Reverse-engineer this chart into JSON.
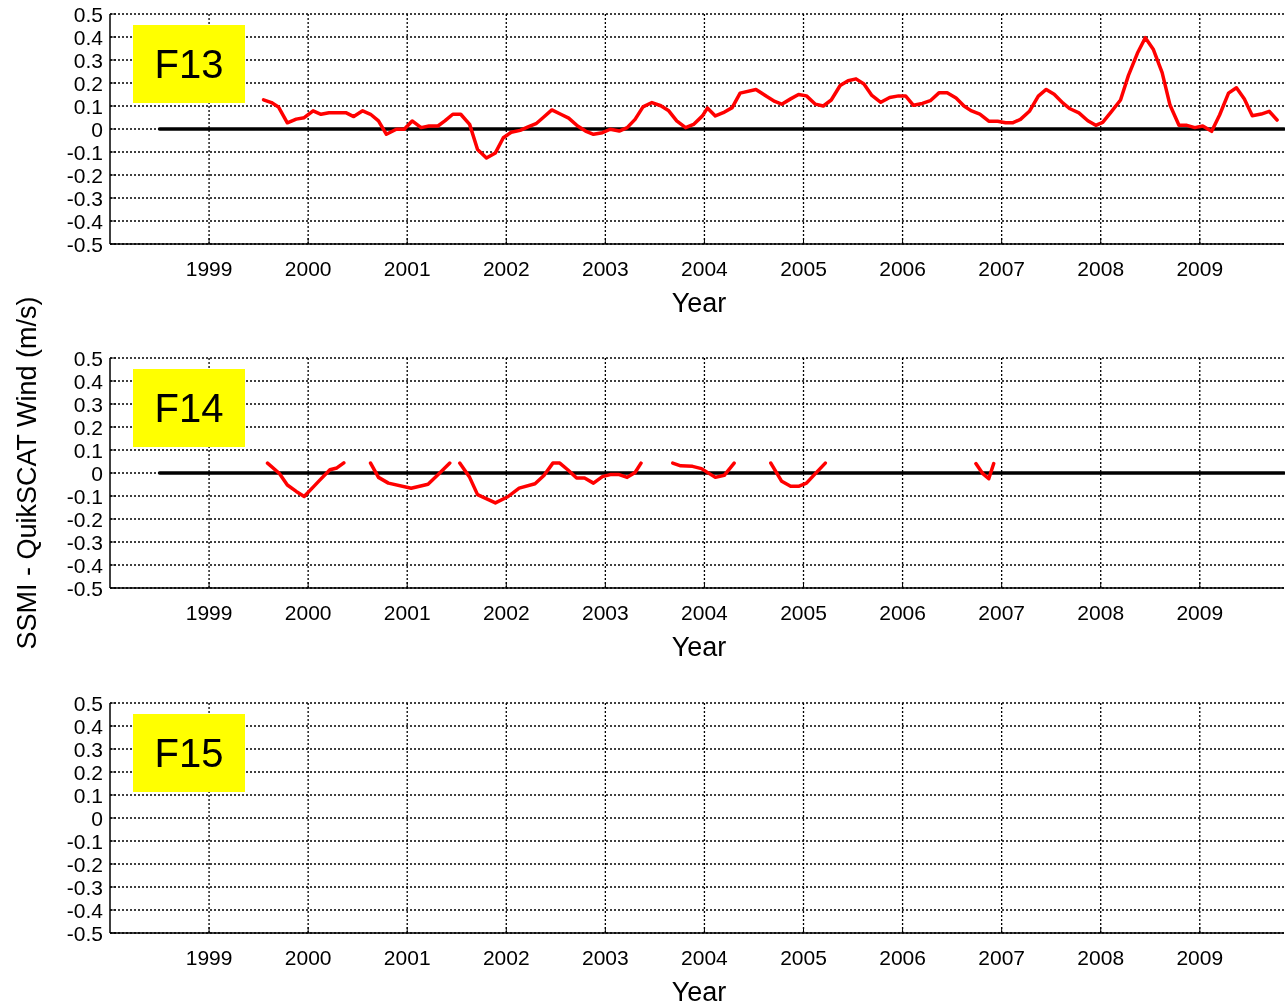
{
  "chart_data": [
    {
      "type": "line",
      "xlabel": "Year",
      "annotations": [
        "F13"
      ],
      "xlim": [
        1998,
        2009.85
      ],
      "xticks": [
        1999,
        2000,
        2001,
        2002,
        2003,
        2004,
        2005,
        2006,
        2007,
        2008,
        2009
      ],
      "ylim": [
        -0.5,
        0.5
      ],
      "yticks": [
        -0.5,
        -0.4,
        -0.3,
        -0.2,
        -0.1,
        0,
        0.1,
        0.2,
        0.3,
        0.4,
        0.5
      ],
      "grid": true,
      "line_style": "solid",
      "series": [
        {
          "color": "#000000",
          "x": [
            1998.5,
            2009.85
          ],
          "values": [
            0,
            0
          ]
        },
        {
          "color": "#ff0000",
          "x": [
            1999.55,
            1999.63,
            1999.7,
            1999.79,
            1999.88,
            1999.96,
            2000.05,
            2000.13,
            2000.21,
            2000.38,
            2000.46,
            2000.55,
            2000.63,
            2000.71,
            2000.79,
            2000.89,
            2000.97,
            2001.05,
            2001.14,
            2001.22,
            2001.31,
            2001.38,
            2001.46,
            2001.54,
            2001.63,
            2001.71,
            2001.8,
            2001.89,
            2001.97,
            2002.05,
            2002.14,
            2002.22,
            2002.3,
            2002.37,
            2002.46,
            2002.55,
            2002.63,
            2002.72,
            2002.8,
            2002.88,
            2002.97,
            2003.05,
            2003.14,
            2003.22,
            2003.3,
            2003.38,
            2003.47,
            2003.56,
            2003.64,
            2003.72,
            2003.81,
            2003.89,
            2003.98,
            2004.03,
            2004.11,
            2004.19,
            2004.28,
            2004.36,
            2004.52,
            2004.63,
            2004.71,
            2004.78,
            2004.87,
            2004.95,
            2005.03,
            2005.12,
            2005.2,
            2005.28,
            2005.37,
            2005.45,
            2005.53,
            2005.61,
            2005.69,
            2005.78,
            2005.87,
            2005.96,
            2006.03,
            2006.11,
            2006.2,
            2006.28,
            2006.37,
            2006.45,
            2006.54,
            2006.62,
            2006.69,
            2006.78,
            2006.87,
            2006.96,
            2007.04,
            2007.11,
            2007.19,
            2007.28,
            2007.37,
            2007.45,
            2007.53,
            2007.62,
            2007.69,
            2007.78,
            2007.87,
            2007.95,
            2008.02,
            2008.11,
            2008.2,
            2008.28,
            2008.37,
            2008.45,
            2008.53,
            2008.62,
            2008.7,
            2008.79,
            2008.87,
            2008.95,
            2009.03,
            2009.12,
            2009.2,
            2009.29,
            2009.37,
            2009.45,
            2009.53,
            2009.62,
            2009.7,
            2009.78
          ],
          "values": [
            0.127,
            0.115,
            0.096,
            0.027,
            0.043,
            0.049,
            0.079,
            0.064,
            0.071,
            0.071,
            0.054,
            0.079,
            0.064,
            0.035,
            -0.023,
            -0.001,
            -0.001,
            0.035,
            0.006,
            0.013,
            0.013,
            0.035,
            0.064,
            0.064,
            0.02,
            -0.089,
            -0.126,
            -0.104,
            -0.038,
            -0.014,
            -0.006,
            0.009,
            0.023,
            0.049,
            0.083,
            0.064,
            0.047,
            0.013,
            -0.009,
            -0.023,
            -0.016,
            -0.001,
            -0.009,
            0.006,
            0.042,
            0.096,
            0.115,
            0.101,
            0.079,
            0.035,
            0.006,
            0.02,
            0.057,
            0.091,
            0.057,
            0.071,
            0.093,
            0.156,
            0.172,
            0.141,
            0.12,
            0.108,
            0.131,
            0.15,
            0.144,
            0.108,
            0.1,
            0.126,
            0.189,
            0.21,
            0.218,
            0.196,
            0.146,
            0.116,
            0.137,
            0.144,
            0.144,
            0.103,
            0.111,
            0.123,
            0.158,
            0.158,
            0.135,
            0.1,
            0.08,
            0.065,
            0.034,
            0.034,
            0.027,
            0.027,
            0.042,
            0.077,
            0.143,
            0.172,
            0.151,
            0.112,
            0.088,
            0.07,
            0.036,
            0.016,
            0.029,
            0.077,
            0.126,
            0.233,
            0.329,
            0.397,
            0.347,
            0.245,
            0.103,
            0.016,
            0.016,
            0.006,
            0.013,
            -0.01,
            0.061,
            0.156,
            0.179,
            0.13,
            0.058,
            0.065,
            0.077,
            0.039
          ]
        }
      ]
    },
    {
      "type": "line",
      "xlabel": "Year",
      "ylabel": "SSMI - QuikSCAT Wind (m/s)",
      "annotations": [
        "F14"
      ],
      "xlim": [
        1998,
        2009.85
      ],
      "xticks": [
        1999,
        2000,
        2001,
        2002,
        2003,
        2004,
        2005,
        2006,
        2007,
        2008,
        2009
      ],
      "ylim": [
        -0.5,
        0.5
      ],
      "yticks": [
        -0.5,
        -0.4,
        -0.3,
        -0.2,
        -0.1,
        0,
        0.1,
        0.2,
        0.3,
        0.4,
        0.5
      ],
      "grid": true,
      "line_style": "solid",
      "series": [
        {
          "color": "#000000",
          "x": [
            1998.5,
            2009.85
          ],
          "values": [
            0,
            0
          ]
        },
        {
          "color": "#ff0000",
          "x": [
            1999.59,
            1999.71,
            1999.79,
            1999.88,
            1999.96,
            2000.06,
            2000.12,
            2000.22,
            2000.29,
            2000.36,
            2000.5,
            2000.63,
            2000.71,
            2000.81,
            2001.04,
            2001.21,
            2001.31,
            2001.43,
            2001.48,
            2001.53,
            2001.63,
            2001.71,
            2001.89,
            2002.02,
            2002.13,
            2002.29,
            2002.38,
            2002.47,
            2002.54,
            2002.62,
            2002.71,
            2002.79,
            2002.88,
            2002.97,
            2003.05,
            2003.14,
            2003.22,
            2003.3,
            2003.36,
            2003.5,
            2003.68,
            2003.76,
            2003.88,
            2003.97,
            2004.11,
            2004.2,
            2004.3,
            2004.5,
            2004.67,
            2004.78,
            2004.87,
            2004.95,
            2005.03,
            2005.11,
            2005.22,
            2006,
            2006.74,
            2006.81,
            2006.87,
            2006.92
          ],
          "values": [
            0.043,
            -0.002,
            -0.052,
            -0.08,
            -0.102,
            -0.057,
            -0.03,
            0.014,
            0.022,
            0.044,
            null,
            0.043,
            -0.019,
            -0.044,
            -0.066,
            -0.049,
            -0.008,
            0.043,
            null,
            0.043,
            -0.019,
            -0.094,
            -0.13,
            -0.102,
            -0.066,
            -0.047,
            -0.011,
            0.043,
            0.043,
            0.014,
            -0.022,
            -0.022,
            -0.044,
            -0.016,
            -0.007,
            -0.007,
            -0.019,
            0.002,
            0.043,
            null,
            0.043,
            0.031,
            0.029,
            0.019,
            -0.019,
            -0.01,
            0.043,
            null,
            0.043,
            -0.036,
            -0.058,
            -0.058,
            -0.044,
            -0.007,
            0.043,
            null,
            0.041,
            -0.003,
            -0.025,
            0.041
          ]
        }
      ]
    },
    {
      "type": "line",
      "xlabel": "Year",
      "annotations": [
        "F15"
      ],
      "xlim": [
        1998,
        2009.85
      ],
      "xticks": [
        1999,
        2000,
        2001,
        2002,
        2003,
        2004,
        2005,
        2006,
        2007,
        2008,
        2009
      ],
      "ylim": [
        -0.5,
        0.5
      ],
      "yticks": [
        -0.5,
        -0.4,
        -0.3,
        -0.2,
        -0.1,
        0,
        0.1,
        0.2,
        0.3,
        0.4,
        0.5
      ],
      "grid": true
    }
  ]
}
